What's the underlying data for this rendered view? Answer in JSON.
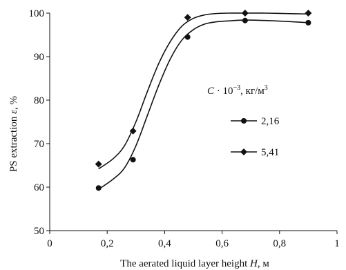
{
  "chart_data": {
    "type": "scatter",
    "title": "",
    "xlabel": {
      "pre": "The aerated liquid layer height ",
      "sym": "H",
      "post": ", м"
    },
    "ylabel": {
      "pre": "PS extraction ",
      "sym": "ε",
      "post": ", %"
    },
    "xlim": [
      0,
      1
    ],
    "ylim": [
      50,
      100
    ],
    "x_ticks": [
      "0",
      "0,2",
      "0,4",
      "0,6",
      "0,8",
      "1"
    ],
    "x_tick_values": [
      0,
      0.2,
      0.4,
      0.6,
      0.8,
      1.0
    ],
    "y_ticks": [
      "50",
      "60",
      "70",
      "80",
      "90",
      "100"
    ],
    "y_tick_values": [
      50,
      60,
      70,
      80,
      90,
      100
    ],
    "grid": false,
    "legend_title": {
      "c": "C",
      "mid": " · 10",
      "exp": "−3",
      "unit": ", кг/м",
      "unit_exp": "3"
    },
    "legend_position": "right",
    "series": [
      {
        "name": "2,16",
        "marker": "circle",
        "color": "#111111",
        "x": [
          0.17,
          0.29,
          0.48,
          0.68,
          0.9
        ],
        "y": [
          59.8,
          66.3,
          94.5,
          98.3,
          97.8
        ],
        "curve_x": [
          0.17,
          0.22,
          0.26,
          0.3,
          0.34,
          0.38,
          0.42,
          0.46,
          0.5,
          0.54,
          0.58,
          0.62,
          0.68,
          0.75,
          0.82,
          0.9
        ],
        "curve_y": [
          59.5,
          61.8,
          64.4,
          69.5,
          76.5,
          83.5,
          89.5,
          93.8,
          96.2,
          97.5,
          98.0,
          98.2,
          98.4,
          98.3,
          98.1,
          97.8
        ]
      },
      {
        "name": "5,41",
        "marker": "diamond",
        "color": "#111111",
        "x": [
          0.17,
          0.29,
          0.48,
          0.68,
          0.9
        ],
        "y": [
          65.3,
          72.9,
          99.0,
          100.0,
          100.0
        ],
        "curve_x": [
          0.17,
          0.22,
          0.26,
          0.3,
          0.34,
          0.38,
          0.42,
          0.46,
          0.5,
          0.54,
          0.58,
          0.62,
          0.68,
          0.75,
          0.82,
          0.9
        ],
        "curve_y": [
          64.2,
          66.5,
          69.5,
          75.0,
          82.0,
          88.5,
          93.5,
          97.0,
          98.8,
          99.6,
          99.9,
          100.0,
          100.0,
          100.0,
          99.9,
          99.8
        ]
      }
    ]
  }
}
